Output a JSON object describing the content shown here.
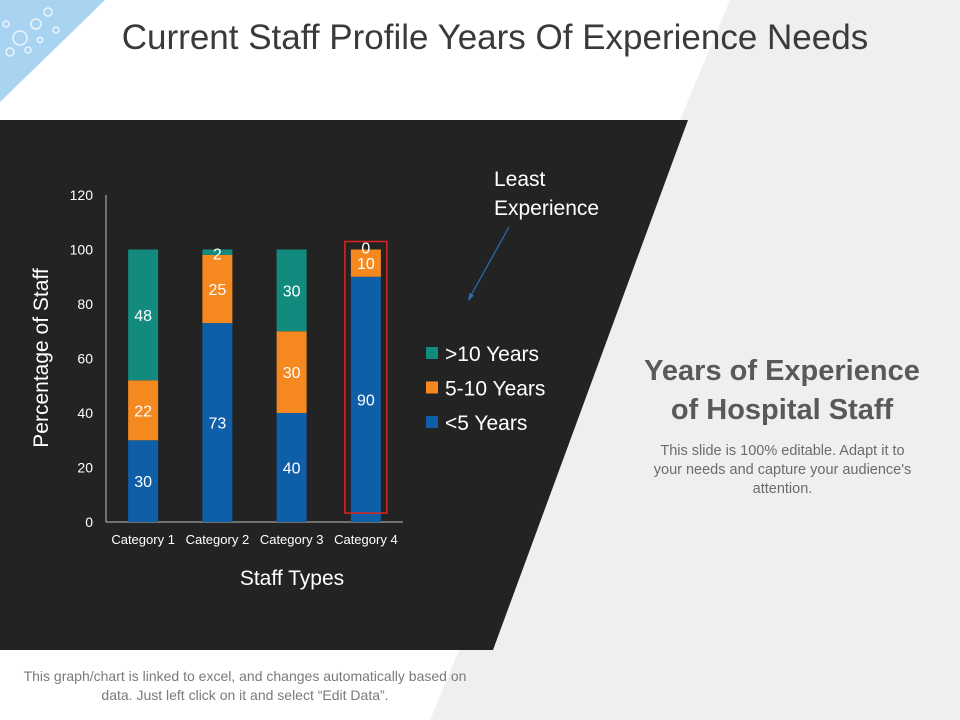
{
  "page": {
    "title": "Current Staff Profile Years Of Experience Needs",
    "side_title_line1": "Years of Experience",
    "side_title_line2": "of Hospital Staff",
    "side_body": "This slide is 100% editable. Adapt it to your needs and capture your audience's attention.",
    "footer": "This graph/chart is linked to excel, and changes automatically based on data. Just left click on it and select “Edit Data”."
  },
  "colors": {
    "under5": "#0f5fa8",
    "five_to_ten": "#f5881f",
    "over10": "#138a7e",
    "panel": "#232323",
    "highlight": "#e0231c",
    "arrow": "#2a6fb5"
  },
  "annotation": {
    "line1": "Least",
    "line2": "Experience"
  },
  "chart_data": {
    "type": "bar",
    "stacked": true,
    "categories": [
      "Category 1",
      "Category 2",
      "Category 3",
      "Category 4"
    ],
    "series": [
      {
        "name": "<5 Years",
        "values": [
          30,
          73,
          40,
          90
        ],
        "color": "#0f5fa8"
      },
      {
        "name": "5-10 Years",
        "values": [
          22,
          25,
          30,
          10
        ],
        "color": "#f5881f"
      },
      {
        "name": ">10 Years",
        "values": [
          48,
          2,
          30,
          0
        ],
        "color": "#138a7e"
      }
    ],
    "legend_order": [
      ">10 Years",
      "5-10 Years",
      "<5 Years"
    ],
    "yticks": [
      0,
      20,
      40,
      60,
      80,
      100,
      120
    ],
    "ylim": [
      0,
      120
    ],
    "xlabel": "Staff Types",
    "ylabel": "Percentage of Staff",
    "highlighted_category": "Category 4",
    "legend_position": "right"
  }
}
